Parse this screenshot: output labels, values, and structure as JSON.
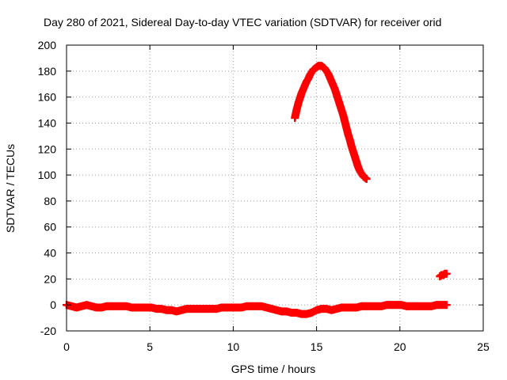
{
  "chart_data": {
    "type": "scatter",
    "title": "Day 280 of 2021, Sidereal Day-to-day VTEC variation (SDTVAR) for receiver orid",
    "xlabel": "GPS time / hours",
    "ylabel": "SDTVAR / TECUs",
    "xlim": [
      0,
      25
    ],
    "ylim": [
      -20,
      200
    ],
    "xticks": [
      "0",
      "5",
      "10",
      "15",
      "20",
      "25"
    ],
    "yticks": [
      "-20",
      "0",
      "20",
      "40",
      "60",
      "80",
      "100",
      "120",
      "140",
      "160",
      "180",
      "200"
    ],
    "grid": true,
    "marker": "plus",
    "color": "#ff0000",
    "series": [
      {
        "x": [
          0,
          0.3,
          0.6,
          0.9,
          1.2,
          1.5,
          1.8,
          2.1,
          2.4,
          2.7,
          3.0,
          3.3,
          3.6,
          3.9,
          4.2,
          4.5,
          4.8,
          5.1,
          5.4,
          5.7,
          6.0,
          6.3,
          6.6,
          6.9,
          7.2,
          7.5,
          7.8,
          8.1,
          8.4,
          8.7,
          9.0,
          9.3,
          9.6,
          9.9,
          10.2,
          10.5,
          10.8,
          11.1,
          11.4,
          11.7,
          12.0,
          12.3,
          12.6,
          12.9,
          13.2,
          13.5,
          13.8,
          14.1,
          14.4,
          14.7,
          15.0,
          15.3,
          15.6,
          15.9,
          16.2,
          16.5,
          16.8,
          17.1,
          17.4,
          17.7,
          18.0,
          18.3,
          18.6,
          18.9,
          19.2,
          19.5,
          19.8,
          20.1,
          20.4,
          20.7,
          21.0,
          21.3,
          21.6,
          21.9,
          22.2,
          22.5,
          22.8
        ],
        "y": [
          0,
          -1,
          -2,
          -1,
          0,
          -1,
          -2,
          -2,
          -1,
          -1,
          -1,
          -1,
          -1,
          -2,
          -2,
          -2,
          -2,
          -2,
          -3,
          -3,
          -4,
          -4,
          -5,
          -4,
          -3,
          -3,
          -3,
          -3,
          -3,
          -3,
          -3,
          -2,
          -2,
          -2,
          -2,
          -2,
          -1,
          -1,
          -1,
          -1,
          -2,
          -3,
          -4,
          -5,
          -5,
          -6,
          -6,
          -7,
          -7,
          -6,
          -4,
          -3,
          -3,
          -4,
          -3,
          -2,
          -2,
          -2,
          -2,
          -1,
          -1,
          -1,
          -1,
          -1,
          0,
          0,
          0,
          0,
          -1,
          -1,
          -1,
          -1,
          -1,
          -1,
          0,
          0,
          0
        ]
      },
      {
        "x": [
          13.7,
          13.8,
          13.9,
          14.0,
          14.1,
          14.2,
          14.3,
          14.4,
          14.5,
          14.6,
          14.7,
          14.8,
          14.9,
          15.0,
          15.1,
          15.2,
          15.3,
          15.4,
          15.5,
          15.6,
          15.7,
          15.8,
          15.9,
          16.0,
          16.1,
          16.2,
          16.3,
          16.4,
          16.5,
          16.6,
          16.7,
          16.8,
          16.9,
          17.0,
          17.1,
          17.2,
          17.3,
          17.4,
          17.5,
          17.6,
          17.7,
          17.8,
          17.9,
          18.0
        ],
        "y": [
          144,
          150,
          155,
          159,
          163,
          166,
          169,
          172,
          174,
          177,
          179,
          181,
          182,
          183,
          184,
          184,
          184,
          183,
          182,
          180,
          178,
          175,
          172,
          169,
          166,
          162,
          158,
          154,
          150,
          146,
          141,
          136,
          131,
          127,
          122,
          118,
          114,
          110,
          106,
          103,
          101,
          99,
          98,
          97
        ]
      },
      {
        "x": [
          22.4,
          22.5,
          22.6,
          22.7,
          22.8
        ],
        "y": [
          22,
          23,
          23,
          24,
          24
        ]
      }
    ]
  }
}
